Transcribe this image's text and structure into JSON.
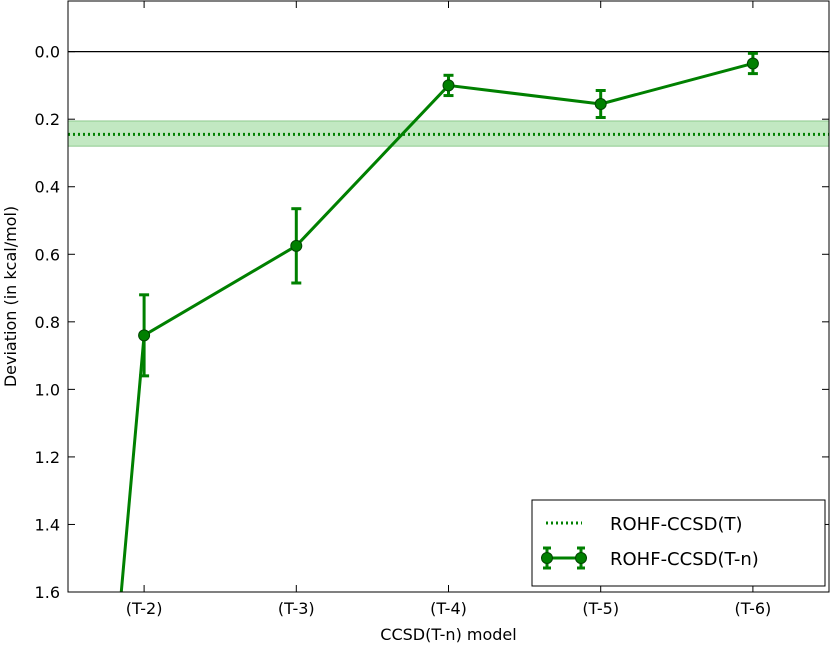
{
  "chart_data": {
    "type": "line",
    "xlabel": "CCSD(T-n) model",
    "ylabel": "Deviation (in kcal/mol)",
    "categories": [
      "(T-2)",
      "(T-3)",
      "(T-4)",
      "(T-5)",
      "(T-6)"
    ],
    "x_positions": [
      1,
      2,
      3,
      4,
      5
    ],
    "xlim": [
      0.5,
      5.5
    ],
    "ylim": [
      -0.15,
      1.6
    ],
    "y_inverted": true,
    "yticks": [
      0.0,
      0.2,
      0.4,
      0.6,
      0.8,
      1.0,
      1.2,
      1.4,
      1.6
    ],
    "ytick_labels": [
      "0.0",
      "0.2",
      "0.4",
      "0.6",
      "0.8",
      "1.0",
      "1.2",
      "1.4",
      "1.6"
    ],
    "grid": false,
    "legend_position": "lower-right",
    "zero_line": 0.0,
    "series": [
      {
        "name": "ROHF-CCSD(T-n)",
        "style": "line-with-markers-and-errorbars",
        "color": "#008000",
        "points": [
          {
            "x": 1,
            "y": 0.84,
            "err": 0.12
          },
          {
            "x": 2,
            "y": 0.575,
            "err": 0.11
          },
          {
            "x": 3,
            "y": 0.1,
            "err": 0.03
          },
          {
            "x": 4,
            "y": 0.155,
            "err": 0.04
          },
          {
            "x": 5,
            "y": 0.035,
            "err": 0.03
          }
        ],
        "extra_left_segment": {
          "x": 0.85,
          "y": 1.6
        }
      },
      {
        "name": "ROHF-CCSD(T)",
        "style": "dotted-horizontal-line-with-band",
        "color": "#008000",
        "band_color": "#8fd68f",
        "value": 0.245,
        "band": [
          0.205,
          0.28
        ]
      }
    ]
  }
}
